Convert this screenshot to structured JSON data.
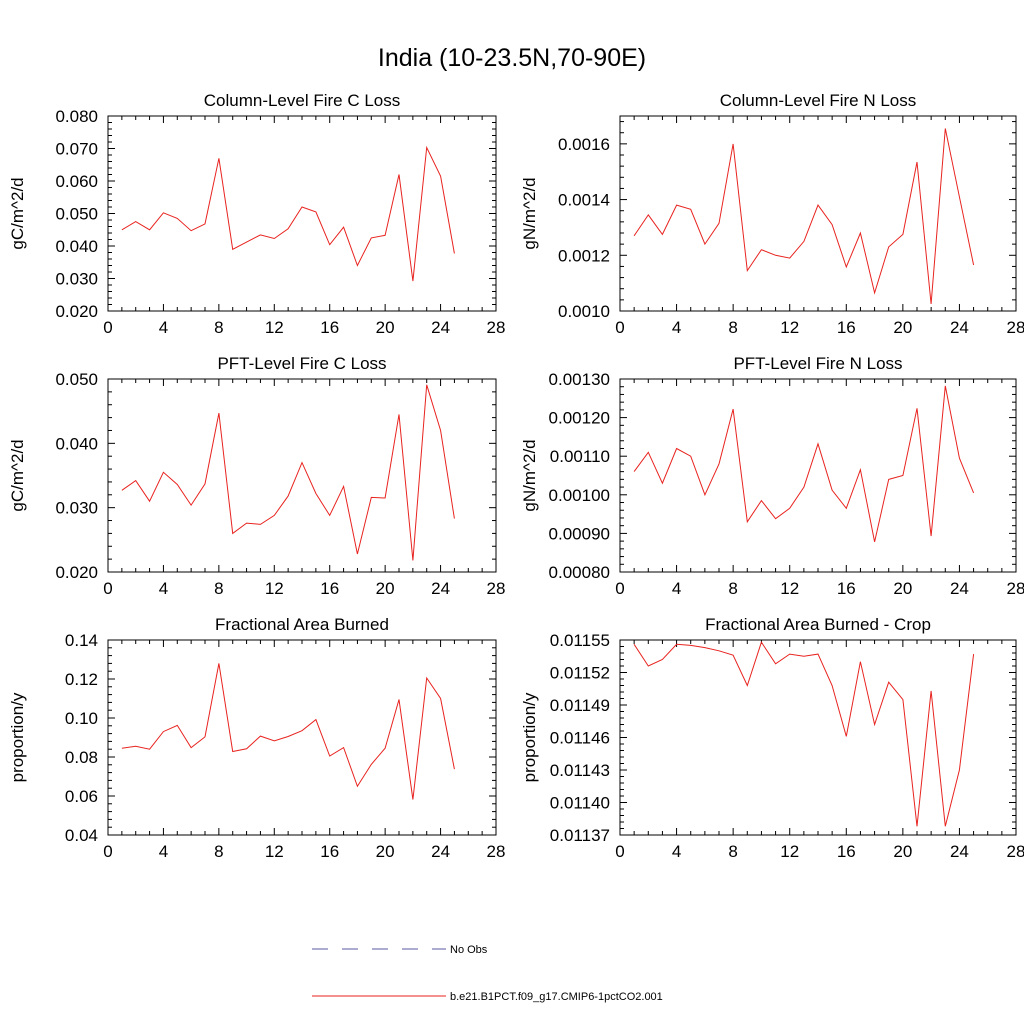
{
  "figure": {
    "title": "India (10-23.5N,70-90E)",
    "legend": [
      {
        "label": "No Obs",
        "color": "#5a5aa0",
        "style": "dashed"
      },
      {
        "label": "b.e21.B1PCT.f09_g17.CMIP6-1pctCO2.001",
        "color": "#e8231f",
        "style": "solid"
      }
    ]
  },
  "chart_data": [
    {
      "type": "line",
      "title": "Column-Level Fire C Loss",
      "xlabel": "",
      "ylabel": "gC/m^2/d",
      "xlim": [
        0,
        28
      ],
      "ylim": [
        0.02,
        0.08
      ],
      "xticks": [
        "0",
        "4",
        "8",
        "12",
        "16",
        "20",
        "24",
        "28"
      ],
      "yticks": [
        "0.020",
        "0.030",
        "0.040",
        "0.050",
        "0.060",
        "0.070",
        "0.080"
      ],
      "series": [
        {
          "name": "b.e21.B1PCT.f09_g17.CMIP6-1pctCO2.001",
          "color": "#e8231f",
          "x": [
            1,
            2,
            3,
            4,
            5,
            6,
            7,
            8,
            9,
            10,
            11,
            12,
            13,
            14,
            15,
            16,
            17,
            18,
            19,
            20,
            21,
            22,
            23,
            24,
            25
          ],
          "values": [
            0.045,
            0.0475,
            0.045,
            0.0502,
            0.0485,
            0.0447,
            0.0468,
            0.067,
            0.039,
            0.0412,
            0.0434,
            0.0423,
            0.0453,
            0.052,
            0.0505,
            0.0404,
            0.0458,
            0.034,
            0.0425,
            0.0433,
            0.062,
            0.0292,
            0.0703,
            0.0615,
            0.0377
          ]
        }
      ]
    },
    {
      "type": "line",
      "title": "Column-Level Fire N Loss",
      "xlabel": "",
      "ylabel": "gN/m^2/d",
      "xlim": [
        0,
        28
      ],
      "ylim": [
        0.001,
        0.0017
      ],
      "xticks": [
        "0",
        "4",
        "8",
        "12",
        "16",
        "20",
        "24",
        "28"
      ],
      "yticks": [
        "0.0010",
        "0.0012",
        "0.0014",
        "0.0016"
      ],
      "series": [
        {
          "name": "b.e21.B1PCT.f09_g17.CMIP6-1pctCO2.001",
          "color": "#e8231f",
          "x": [
            1,
            2,
            3,
            4,
            5,
            6,
            7,
            8,
            9,
            10,
            11,
            12,
            13,
            14,
            15,
            16,
            17,
            18,
            19,
            20,
            21,
            22,
            23,
            24,
            25
          ],
          "values": [
            0.00127,
            0.001345,
            0.001275,
            0.00138,
            0.001365,
            0.00124,
            0.001315,
            0.0016,
            0.001145,
            0.00122,
            0.0012,
            0.00119,
            0.00125,
            0.00138,
            0.00131,
            0.001158,
            0.00128,
            0.001065,
            0.00123,
            0.001275,
            0.001535,
            0.001025,
            0.001655,
            0.00141,
            0.001165
          ]
        }
      ]
    },
    {
      "type": "line",
      "title": "PFT-Level Fire C Loss",
      "xlabel": "",
      "ylabel": "gC/m^2/d",
      "xlim": [
        0,
        28
      ],
      "ylim": [
        0.02,
        0.05
      ],
      "xticks": [
        "0",
        "4",
        "8",
        "12",
        "16",
        "20",
        "24",
        "28"
      ],
      "yticks": [
        "0.020",
        "0.030",
        "0.040",
        "0.050"
      ],
      "series": [
        {
          "name": "b.e21.B1PCT.f09_g17.CMIP6-1pctCO2.001",
          "color": "#e8231f",
          "x": [
            1,
            2,
            3,
            4,
            5,
            6,
            7,
            8,
            9,
            10,
            11,
            12,
            13,
            14,
            15,
            16,
            17,
            18,
            19,
            20,
            21,
            22,
            23,
            24,
            25
          ],
          "values": [
            0.0327,
            0.0342,
            0.031,
            0.0355,
            0.0336,
            0.0304,
            0.0337,
            0.0447,
            0.026,
            0.0276,
            0.0274,
            0.0288,
            0.0318,
            0.037,
            0.0322,
            0.0288,
            0.0333,
            0.0228,
            0.0316,
            0.0315,
            0.0445,
            0.0218,
            0.0491,
            0.042,
            0.0283
          ]
        }
      ]
    },
    {
      "type": "line",
      "title": "PFT-Level Fire N Loss",
      "xlabel": "",
      "ylabel": "gN/m^2/d",
      "xlim": [
        0,
        28
      ],
      "ylim": [
        0.0008,
        0.0013
      ],
      "xticks": [
        "0",
        "4",
        "8",
        "12",
        "16",
        "20",
        "24",
        "28"
      ],
      "yticks": [
        "0.00080",
        "0.00090",
        "0.00100",
        "0.00110",
        "0.00120",
        "0.00130"
      ],
      "series": [
        {
          "name": "b.e21.B1PCT.f09_g17.CMIP6-1pctCO2.001",
          "color": "#e8231f",
          "x": [
            1,
            2,
            3,
            4,
            5,
            6,
            7,
            8,
            9,
            10,
            11,
            12,
            13,
            14,
            15,
            16,
            17,
            18,
            19,
            20,
            21,
            22,
            23,
            24,
            25
          ],
          "values": [
            0.00106,
            0.00111,
            0.00103,
            0.00112,
            0.0011,
            0.001,
            0.00108,
            0.001222,
            0.00093,
            0.000985,
            0.000938,
            0.000965,
            0.00102,
            0.001132,
            0.001012,
            0.000965,
            0.001065,
            0.000878,
            0.00104,
            0.00105,
            0.001224,
            0.000893,
            0.001282,
            0.001095,
            0.001005
          ]
        }
      ]
    },
    {
      "type": "line",
      "title": "Fractional Area Burned",
      "xlabel": "",
      "ylabel": "proportion/y",
      "xlim": [
        0,
        28
      ],
      "ylim": [
        0.04,
        0.14
      ],
      "xticks": [
        "0",
        "4",
        "8",
        "12",
        "16",
        "20",
        "24",
        "28"
      ],
      "yticks": [
        "0.04",
        "0.06",
        "0.08",
        "0.10",
        "0.12",
        "0.14"
      ],
      "series": [
        {
          "name": "b.e21.B1PCT.f09_g17.CMIP6-1pctCO2.001",
          "color": "#e8231f",
          "x": [
            1,
            2,
            3,
            4,
            5,
            6,
            7,
            8,
            9,
            10,
            11,
            12,
            13,
            14,
            15,
            16,
            17,
            18,
            19,
            20,
            21,
            22,
            23,
            24,
            25
          ],
          "values": [
            0.0845,
            0.0855,
            0.084,
            0.093,
            0.0962,
            0.0848,
            0.0903,
            0.128,
            0.0828,
            0.0842,
            0.0907,
            0.0883,
            0.0905,
            0.0935,
            0.0992,
            0.0805,
            0.0848,
            0.065,
            0.0762,
            0.0845,
            0.1095,
            0.0582,
            0.1205,
            0.11,
            0.0738
          ]
        }
      ]
    },
    {
      "type": "line",
      "title": "Fractional Area Burned - Crop",
      "xlabel": "",
      "ylabel": "proportion/y",
      "xlim": [
        0,
        28
      ],
      "ylim": [
        0.01137,
        0.01155
      ],
      "xticks": [
        "0",
        "4",
        "8",
        "12",
        "16",
        "20",
        "24",
        "28"
      ],
      "yticks": [
        "0.01137",
        "0.01140",
        "0.01143",
        "0.01146",
        "0.01149",
        "0.01152",
        "0.01155"
      ],
      "series": [
        {
          "name": "b.e21.B1PCT.f09_g17.CMIP6-1pctCO2.001",
          "color": "#e8231f",
          "x": [
            1,
            2,
            3,
            4,
            5,
            6,
            7,
            8,
            9,
            10,
            11,
            12,
            13,
            14,
            15,
            16,
            17,
            18,
            19,
            20,
            21,
            22,
            23,
            24,
            25
          ],
          "values": [
            0.011546,
            0.011526,
            0.011532,
            0.011546,
            0.011545,
            0.011543,
            0.01154,
            0.011536,
            0.011508,
            0.011548,
            0.011528,
            0.011537,
            0.011535,
            0.011537,
            0.011508,
            0.011461,
            0.01153,
            0.011472,
            0.011511,
            0.011495,
            0.011378,
            0.011503,
            0.011378,
            0.01143,
            0.011537
          ]
        }
      ]
    }
  ]
}
